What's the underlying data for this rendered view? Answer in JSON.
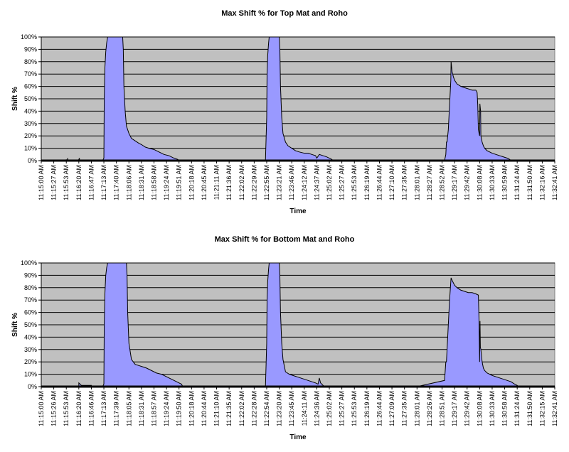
{
  "chart_data": [
    {
      "type": "area",
      "title": "Max Shift % for Top Mat and Roho",
      "xlabel": "Time",
      "ylabel": "Shift %",
      "ylim": [
        0,
        100
      ],
      "y_ticks": [
        "0%",
        "10%",
        "20%",
        "30%",
        "40%",
        "50%",
        "60%",
        "70%",
        "80%",
        "90%",
        "100%"
      ],
      "x_ticks": [
        "11:15:00 AM",
        "11:15:27 AM",
        "11:15:53 AM",
        "11:16:20 AM",
        "11:16:47 AM",
        "11:17:13 AM",
        "11:17:40 AM",
        "11:18:06 AM",
        "11:18:31 AM",
        "11:18:58 AM",
        "11:19:24 AM",
        "11:19:51 AM",
        "11:20:18 AM",
        "11:20:45 AM",
        "11:21:11 AM",
        "11:21:36 AM",
        "11:22:02 AM",
        "11:22:29 AM",
        "11:22:55 AM",
        "11:23:21 AM",
        "11:23:46 AM",
        "11:24:12 AM",
        "11:24:37 AM",
        "11:25:02 AM",
        "11:25:27 AM",
        "11:25:53 AM",
        "11:26:19 AM",
        "11:26:44 AM",
        "11:27:10 AM",
        "11:27:35 AM",
        "11:28:01 AM",
        "11:28:27 AM",
        "11:28:52 AM",
        "11:29:17 AM",
        "11:29:42 AM",
        "11:30:08 AM",
        "11:30:33 AM",
        "11:30:59 AM",
        "11:31:24 AM",
        "11:31:50 AM",
        "11:32:16 AM",
        "11:32:41 AM"
      ],
      "grid": true,
      "plot_bg": "#c0c0c0",
      "fill_color": "#9999ff",
      "series": [
        {
          "x": [
            0,
            1,
            2,
            2,
            2,
            2.05,
            2.1,
            2.1,
            2.15,
            2.2,
            3,
            3,
            3.05,
            3.05,
            3.1,
            3.2,
            4,
            4.9,
            5.0,
            5.03,
            5.08,
            5.15,
            5.22,
            5.3,
            6.0,
            6.5,
            6.55,
            6.6,
            6.7,
            6.8,
            7.0,
            7.2,
            7.5,
            7.8,
            8.0,
            8.3,
            8.6,
            9.0,
            9.4,
            9.8,
            10.2,
            10.6,
            10.9,
            11.0,
            12,
            14,
            16,
            17.9,
            18.0,
            18.03,
            18.08,
            18.15,
            18.2,
            18.25,
            18.4,
            19.0,
            19.05,
            19.1,
            19.2,
            19.3,
            19.5,
            19.7,
            20.0,
            20.3,
            20.6,
            21.0,
            21.3,
            21.6,
            21.9,
            22.0,
            22.2,
            22.5,
            22.8,
            23.0,
            23.2,
            23.3,
            25,
            28,
            30,
            32.2,
            32.3,
            32.35,
            32.4,
            32.5,
            32.6,
            32.7,
            32.72,
            32.8,
            32.85,
            32.9,
            33.0,
            33.2,
            33.5,
            33.8,
            34.1,
            34.4,
            34.7,
            34.8,
            34.85,
            34.9,
            35.0,
            35.02,
            35.08,
            35.1,
            35.2,
            35.3,
            35.4,
            35.5,
            35.6,
            35.8,
            36.0,
            36.3,
            36.6,
            36.9,
            37.2,
            37.4,
            37.5,
            37.6,
            39,
            41
          ],
          "values": [
            0,
            0,
            0,
            1,
            0,
            0,
            0,
            2,
            0,
            0,
            0,
            1,
            2,
            0,
            0,
            0,
            0,
            0,
            2,
            50,
            75,
            88,
            95,
            100,
            100,
            100,
            90,
            60,
            40,
            28,
            22,
            18,
            16,
            14,
            13,
            11,
            10,
            9,
            7,
            5,
            4,
            2,
            1,
            0,
            0,
            0,
            0,
            0,
            35,
            70,
            85,
            95,
            100,
            100,
            100,
            100,
            90,
            60,
            35,
            22,
            15,
            12,
            10,
            8,
            7,
            6,
            6,
            5,
            4,
            2,
            5,
            4,
            3,
            2,
            1,
            0,
            0,
            0,
            0,
            0,
            5,
            15,
            15,
            25,
            45,
            65,
            80,
            72,
            70,
            68,
            65,
            62,
            60,
            59,
            58,
            57,
            57,
            55,
            45,
            25,
            20,
            46,
            40,
            20,
            15,
            12,
            10,
            9,
            8,
            7,
            6,
            5,
            4,
            3,
            2,
            1,
            0,
            0,
            0,
            0
          ]
        }
      ]
    },
    {
      "type": "area",
      "title": "Max Shift % for Bottom Mat and Roho",
      "xlabel": "Time",
      "ylabel": "Shift %",
      "ylim": [
        0,
        100
      ],
      "y_ticks": [
        "0%",
        "10%",
        "20%",
        "30%",
        "40%",
        "50%",
        "60%",
        "70%",
        "80%",
        "90%",
        "100%"
      ],
      "x_ticks": [
        "11:15:00 AM",
        "11:15:26 AM",
        "11:15:53 AM",
        "11:16:20 AM",
        "11:16:46 AM",
        "11:17:13 AM",
        "11:17:39 AM",
        "11:18:05 AM",
        "11:18:31 AM",
        "11:18:57 AM",
        "11:19:24 AM",
        "11:19:50 AM",
        "11:20:18 AM",
        "11:20:44 AM",
        "11:21:10 AM",
        "11:21:35 AM",
        "11:22:02 AM",
        "11:22:28 AM",
        "11:22:54 AM",
        "11:23:20 AM",
        "11:23:45 AM",
        "11:24:11 AM",
        "11:24:36 AM",
        "11:25:02 AM",
        "11:25:27 AM",
        "11:25:53 AM",
        "11:26:19 AM",
        "11:26:44 AM",
        "11:27:09 AM",
        "11:27:35 AM",
        "11:28:01 AM",
        "11:28:26 AM",
        "11:28:51 AM",
        "11:29:17 AM",
        "11:29:42 AM",
        "11:30:08 AM",
        "11:30:33 AM",
        "11:30:58 AM",
        "11:31:24 AM",
        "11:31:50 AM",
        "11:32:15 AM",
        "11:32:41 AM"
      ],
      "grid": true,
      "plot_bg": "#c0c0c0",
      "fill_color": "#9999ff",
      "series": [
        {
          "x": [
            0,
            2,
            3.0,
            3.0,
            3.1,
            3.2,
            3.5,
            3.8,
            4.0,
            4.0,
            4.9,
            5.0,
            5.03,
            5.08,
            5.15,
            5.22,
            5.3,
            6.0,
            6.8,
            6.85,
            6.9,
            7.0,
            7.2,
            7.5,
            7.8,
            8.1,
            8.4,
            8.8,
            9.2,
            9.6,
            10.0,
            10.4,
            10.8,
            11.0,
            11.2,
            11.3,
            12,
            14,
            16,
            17.9,
            18.0,
            18.03,
            18.08,
            18.15,
            18.2,
            18.25,
            18.4,
            19.0,
            19.05,
            19.1,
            19.2,
            19.3,
            19.5,
            19.8,
            20.1,
            20.4,
            20.7,
            21.0,
            21.3,
            21.6,
            21.9,
            22.1,
            22.2,
            22.25,
            22.3,
            22.4,
            22.5,
            22.6,
            24,
            27,
            30,
            32.2,
            32.3,
            32.35,
            32.4,
            32.5,
            32.6,
            32.7,
            32.72,
            32.8,
            32.9,
            33.0,
            33.2,
            33.5,
            33.8,
            34.1,
            34.4,
            34.7,
            34.9,
            34.95,
            35.0,
            35.03,
            35.06,
            35.1,
            35.15,
            35.2,
            35.3,
            35.4,
            35.6,
            35.8,
            36.0,
            36.3,
            36.6,
            36.9,
            37.2,
            37.5,
            37.8,
            38.0,
            38.1,
            40,
            41
          ],
          "values": [
            0,
            0,
            0,
            3,
            2,
            1,
            1,
            1,
            1,
            0,
            0,
            2,
            50,
            75,
            90,
            96,
            100,
            100,
            100,
            90,
            60,
            35,
            22,
            18,
            17,
            16,
            15,
            13,
            11,
            10,
            8,
            6,
            4,
            3,
            2,
            0,
            0,
            0,
            0,
            0,
            35,
            70,
            85,
            95,
            100,
            100,
            100,
            100,
            90,
            60,
            35,
            22,
            12,
            10,
            9,
            8,
            7,
            6,
            5,
            4,
            3,
            2,
            7,
            5,
            3,
            2,
            1,
            0,
            0,
            0,
            0,
            5,
            20,
            20,
            30,
            50,
            70,
            85,
            88,
            86,
            84,
            82,
            80,
            78,
            77,
            76,
            76,
            75,
            74,
            55,
            20,
            53,
            32,
            30,
            25,
            20,
            15,
            13,
            11,
            10,
            9,
            8,
            7,
            6,
            5,
            4,
            2,
            1,
            0,
            0,
            0
          ]
        }
      ]
    }
  ]
}
